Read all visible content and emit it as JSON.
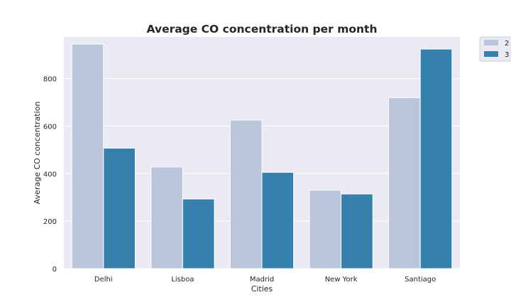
{
  "chart_data": {
    "type": "bar",
    "title": "Average CO concentration per month",
    "xlabel": "Cities",
    "ylabel": "Average CO concentration",
    "categories": [
      "Delhi",
      "Lisboa",
      "Madrid",
      "New York",
      "Santiago"
    ],
    "series": [
      {
        "name": "2",
        "color": "#b9c6db",
        "values": [
          945,
          428,
          625,
          330,
          720
        ]
      },
      {
        "name": "3",
        "color": "#3580ad",
        "values": [
          507,
          293,
          405,
          314,
          924
        ]
      }
    ],
    "ylim": [
      0,
      975
    ],
    "yticks": [
      0,
      200,
      400,
      600,
      800
    ],
    "grid": true,
    "legend_position": "outside-top-right",
    "plot_background": "#eaeaf2",
    "grid_color": "#ffffff"
  }
}
